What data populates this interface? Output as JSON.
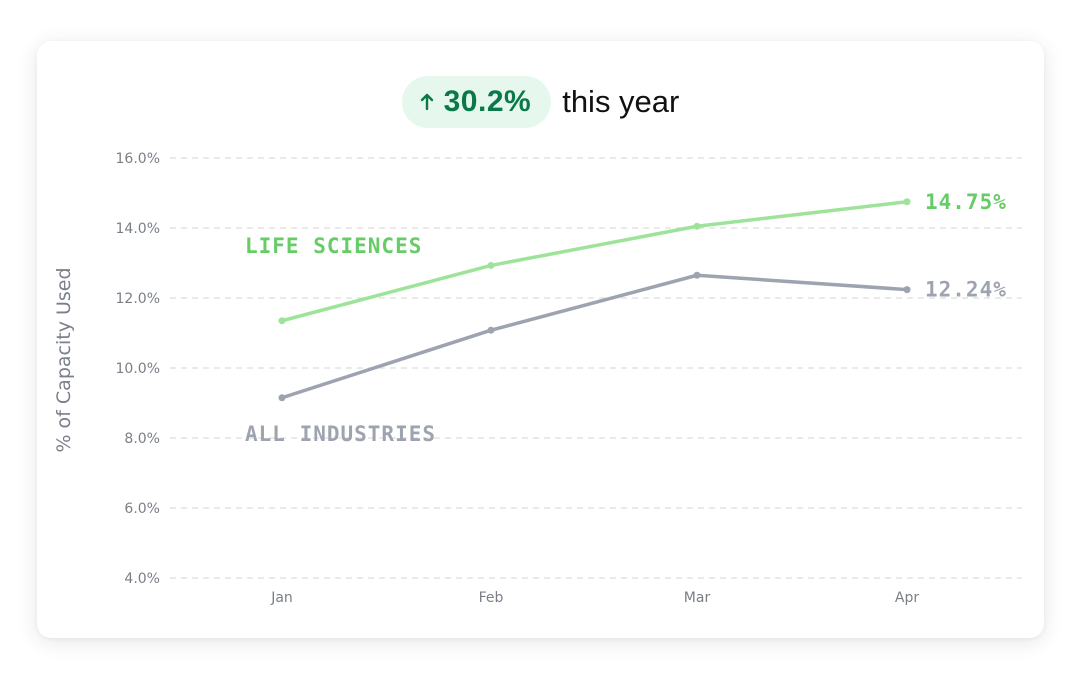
{
  "headline": {
    "change_value": "30.2%",
    "change_suffix": "this year",
    "direction_icon": "arrow-up-icon",
    "colors": {
      "badge_bg": "#e6f8ee",
      "badge_text": "#097a47"
    }
  },
  "chart_data": {
    "type": "line",
    "title": "",
    "xlabel": "",
    "ylabel": "% of Capacity Used",
    "categories": [
      "Jan",
      "Feb",
      "Mar",
      "Apr"
    ],
    "ylim": [
      4.0,
      16.0
    ],
    "yticks": [
      "4.0%",
      "6.0%",
      "8.0%",
      "10.0%",
      "12.0%",
      "14.0%",
      "16.0%"
    ],
    "grid": true,
    "series": [
      {
        "name": "LIFE SCIENCES",
        "values": [
          11.35,
          12.93,
          14.05,
          14.75
        ],
        "color": "#9ee39a",
        "label_color": "#66cc66",
        "end_label": "14.75%"
      },
      {
        "name": "ALL INDUSTRIES",
        "values": [
          9.15,
          11.08,
          12.65,
          12.24
        ],
        "color": "#9ea3b0",
        "label_color": "#9ea3b0",
        "end_label": "12.24%"
      }
    ]
  }
}
